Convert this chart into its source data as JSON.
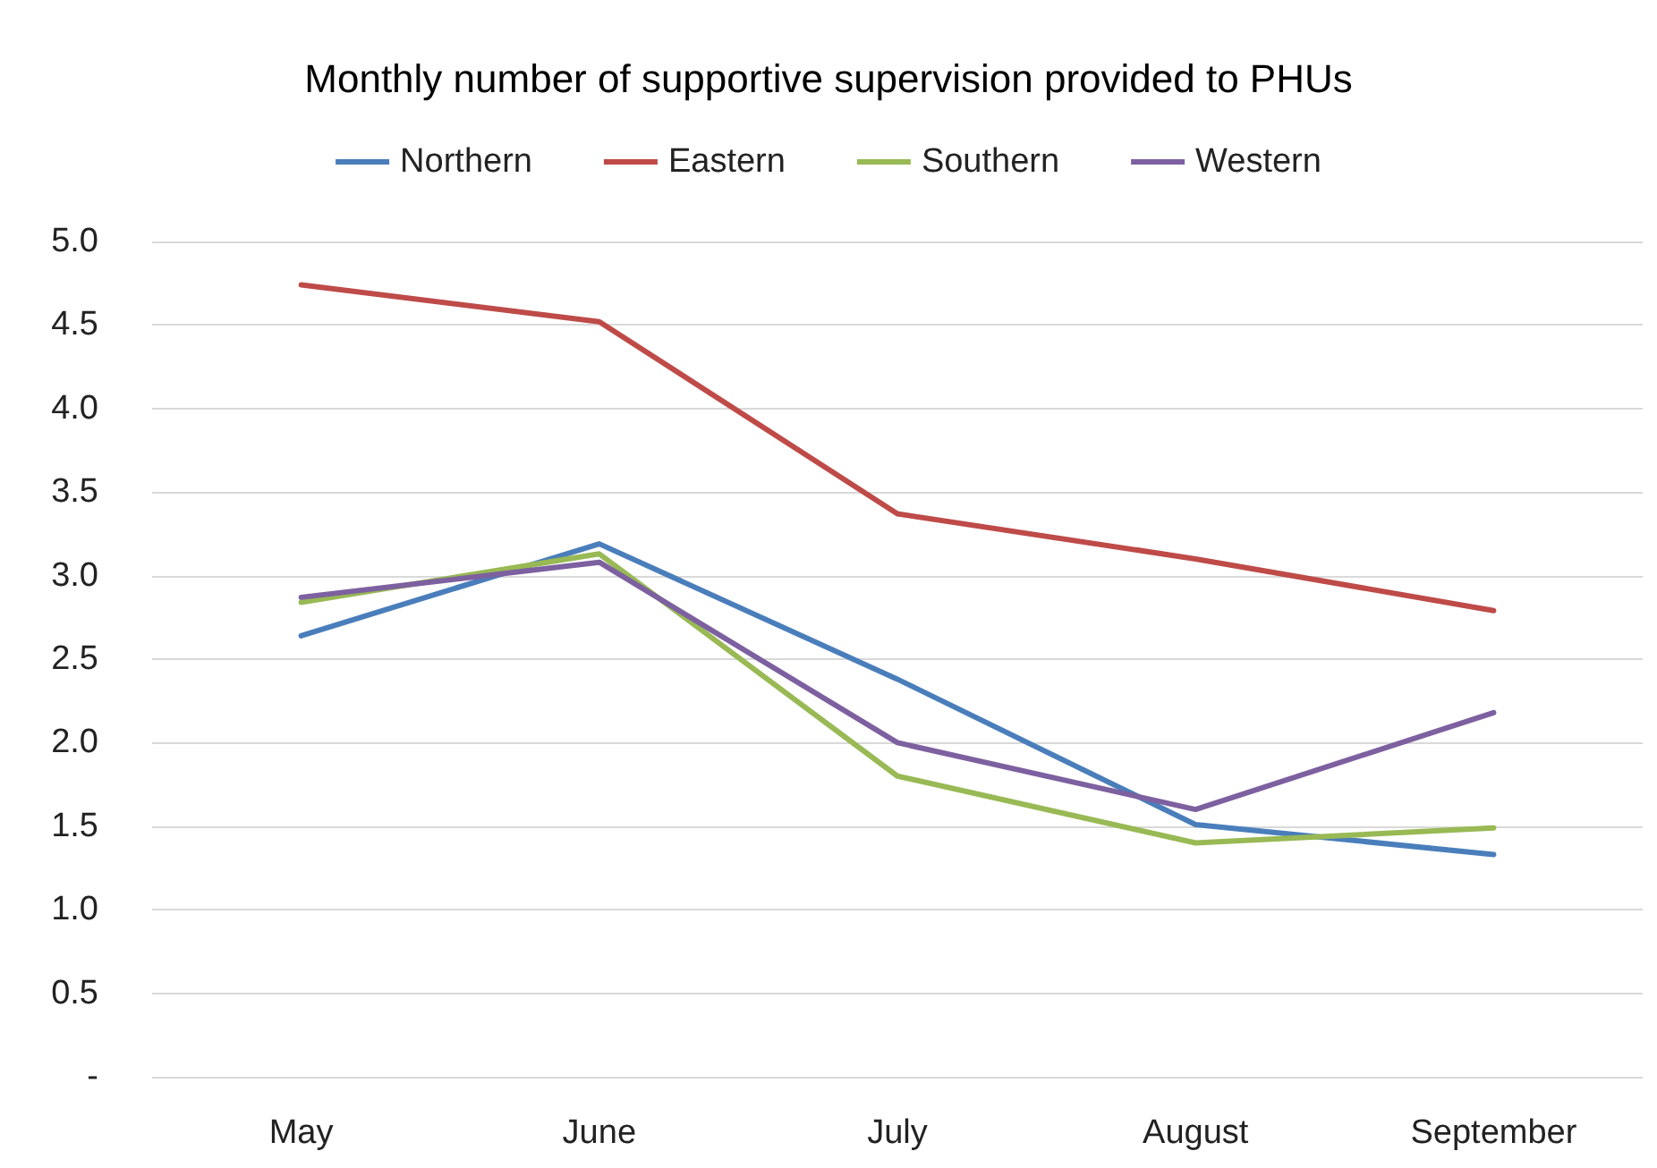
{
  "chart_data": {
    "type": "line",
    "title": "Monthly number of supportive supervision provided to PHUs",
    "categories": [
      "May",
      "June",
      "July",
      "August",
      "September"
    ],
    "series": [
      {
        "name": "Northern",
        "color": "#4a7ebb",
        "values": [
          2.64,
          3.19,
          2.38,
          1.51,
          1.33
        ]
      },
      {
        "name": "Eastern",
        "color": "#be4b48",
        "values": [
          4.74,
          4.52,
          3.37,
          3.1,
          2.79
        ]
      },
      {
        "name": "Southern",
        "color": "#98b954",
        "values": [
          2.84,
          3.13,
          1.8,
          1.4,
          1.49
        ]
      },
      {
        "name": "Western",
        "color": "#7d60a0",
        "values": [
          2.87,
          3.08,
          2.0,
          1.6,
          2.18
        ]
      }
    ],
    "ylim": [
      0,
      5
    ],
    "yticks": [
      {
        "value": 0,
        "label": "-"
      },
      {
        "value": 0.5,
        "label": "0.5"
      },
      {
        "value": 1,
        "label": "1.0"
      },
      {
        "value": 1.5,
        "label": "1.5"
      },
      {
        "value": 2,
        "label": "2.0"
      },
      {
        "value": 2.5,
        "label": "2.5"
      },
      {
        "value": 3,
        "label": "3.0"
      },
      {
        "value": 3.5,
        "label": "3.5"
      },
      {
        "value": 4,
        "label": "4.0"
      },
      {
        "value": 4.5,
        "label": "4.5"
      },
      {
        "value": 5,
        "label": "5.0"
      }
    ],
    "grid": "y",
    "legend": "top",
    "marker": "none",
    "line_style": "solid"
  }
}
